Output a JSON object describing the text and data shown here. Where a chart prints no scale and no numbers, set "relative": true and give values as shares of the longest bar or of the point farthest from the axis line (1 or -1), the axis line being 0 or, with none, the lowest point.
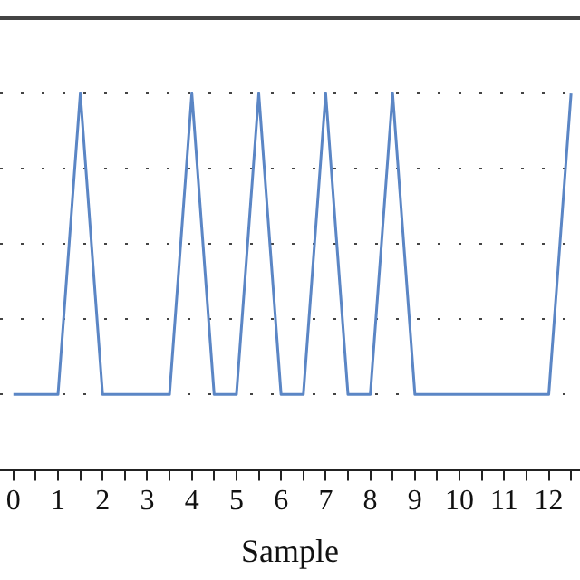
{
  "chart_data": {
    "type": "line",
    "xlabel": "Sample",
    "relative": true,
    "grid": "y",
    "legend": false,
    "marker": "none",
    "line_style": "solid",
    "xlim": [
      -0.3,
      12.7
    ],
    "xticks": [
      0,
      {
        "value": 0.5,
        "label": null
      },
      1,
      {
        "value": 1.5,
        "label": null
      },
      2,
      {
        "value": 2.5,
        "label": null
      },
      3,
      {
        "value": 3.5,
        "label": null
      },
      4,
      {
        "value": 4.5,
        "label": null
      },
      5,
      {
        "value": 5.5,
        "label": null
      },
      6,
      {
        "value": 6.5,
        "label": null
      },
      7,
      {
        "value": 7.5,
        "label": null
      },
      8,
      {
        "value": 8.5,
        "label": null
      },
      9,
      {
        "value": 9.5,
        "label": null
      },
      10,
      {
        "value": 10.5,
        "label": null
      },
      11,
      {
        "value": 11.5,
        "label": null
      },
      12,
      {
        "value": 12.5,
        "label": null
      }
    ],
    "series": [
      {
        "color": "#5b86c5",
        "x": [
          0,
          1,
          1.5,
          2,
          3.5,
          4,
          4.5,
          5,
          5.5,
          6,
          6.5,
          7,
          7.5,
          8,
          8.5,
          9,
          12,
          12.5
        ],
        "values": [
          0.2,
          0.2,
          1,
          0.2,
          0.2,
          1,
          0.2,
          0.2,
          1,
          0.2,
          0.2,
          1,
          0.2,
          0.2,
          1,
          0.2,
          0.2,
          1
        ]
      }
    ]
  }
}
